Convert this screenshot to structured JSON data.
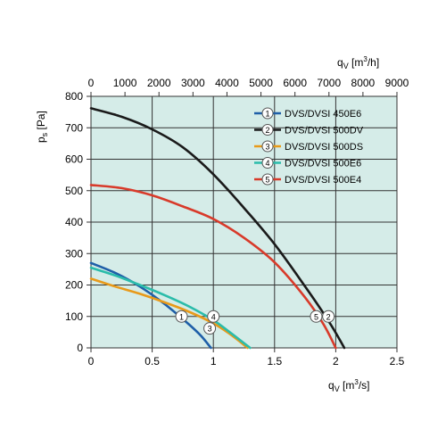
{
  "chart_data": {
    "type": "line",
    "y_axis": {
      "label_main": "p",
      "label_sub": "s",
      "label_unit": "[Pa]",
      "range": [
        0,
        800
      ],
      "ticks": [
        0,
        100,
        200,
        300,
        400,
        500,
        600,
        700,
        800
      ]
    },
    "x_axis_bottom": {
      "label_main": "q",
      "label_sub": "V",
      "label_unit_pre": "[m",
      "label_unit_sup": "3",
      "label_unit_post": "/s]",
      "range": [
        0,
        2.5
      ],
      "ticks": [
        0,
        0.5,
        1,
        1.5,
        2,
        2.5
      ],
      "tick_labels": [
        "0",
        "0.5",
        "1",
        "1.5",
        "2",
        "2.5"
      ]
    },
    "x_axis_top": {
      "label_main": "q",
      "label_sub": "V",
      "label_unit_pre": "[m",
      "label_unit_sup": "3",
      "label_unit_post": "/h]",
      "range": [
        0,
        9000
      ],
      "ticks": [
        0,
        1000,
        2000,
        3000,
        4000,
        5000,
        6000,
        7000,
        8000,
        9000
      ]
    },
    "grid": true,
    "background": "#d5ece8",
    "legend_position": "top-right",
    "series": [
      {
        "id": "1",
        "name": "DVS/DVSI 450E6",
        "color": "#1f5fa8",
        "marker": {
          "x": 0.74,
          "y": 100
        },
        "points": [
          [
            0,
            270
          ],
          [
            0.2,
            238
          ],
          [
            0.4,
            195
          ],
          [
            0.6,
            140
          ],
          [
            0.8,
            75
          ],
          [
            0.9,
            38
          ],
          [
            0.98,
            0
          ]
        ]
      },
      {
        "id": "2",
        "name": "DVS/DVSI 500DV",
        "color": "#1a1a1a",
        "marker": {
          "x": 1.94,
          "y": 100
        },
        "points": [
          [
            0,
            762
          ],
          [
            0.25,
            735
          ],
          [
            0.5,
            695
          ],
          [
            0.75,
            638
          ],
          [
            1.0,
            552
          ],
          [
            1.25,
            445
          ],
          [
            1.5,
            330
          ],
          [
            1.75,
            195
          ],
          [
            1.95,
            80
          ],
          [
            2.07,
            0
          ]
        ]
      },
      {
        "id": "3",
        "name": "DVS/DVSI 500DS",
        "color": "#e89a1a",
        "marker": {
          "x": 0.97,
          "y": 62
        },
        "points": [
          [
            0,
            220
          ],
          [
            0.2,
            195
          ],
          [
            0.4,
            172
          ],
          [
            0.6,
            145
          ],
          [
            0.8,
            115
          ],
          [
            1.0,
            78
          ],
          [
            1.15,
            40
          ],
          [
            1.28,
            0
          ]
        ]
      },
      {
        "id": "4",
        "name": "DVS/DVSI 500E6",
        "color": "#2bbcaa",
        "marker": {
          "x": 1.0,
          "y": 100
        },
        "points": [
          [
            0,
            255
          ],
          [
            0.2,
            230
          ],
          [
            0.4,
            200
          ],
          [
            0.6,
            168
          ],
          [
            0.8,
            132
          ],
          [
            1.0,
            88
          ],
          [
            1.15,
            45
          ],
          [
            1.3,
            0
          ]
        ]
      },
      {
        "id": "5",
        "name": "DVS/DVSI 500E4",
        "color": "#d83a2a",
        "marker": {
          "x": 1.84,
          "y": 100
        },
        "points": [
          [
            0,
            518
          ],
          [
            0.25,
            508
          ],
          [
            0.5,
            485
          ],
          [
            0.75,
            450
          ],
          [
            1.0,
            410
          ],
          [
            1.25,
            350
          ],
          [
            1.5,
            272
          ],
          [
            1.75,
            160
          ],
          [
            1.9,
            75
          ],
          [
            2.0,
            0
          ]
        ]
      }
    ]
  }
}
